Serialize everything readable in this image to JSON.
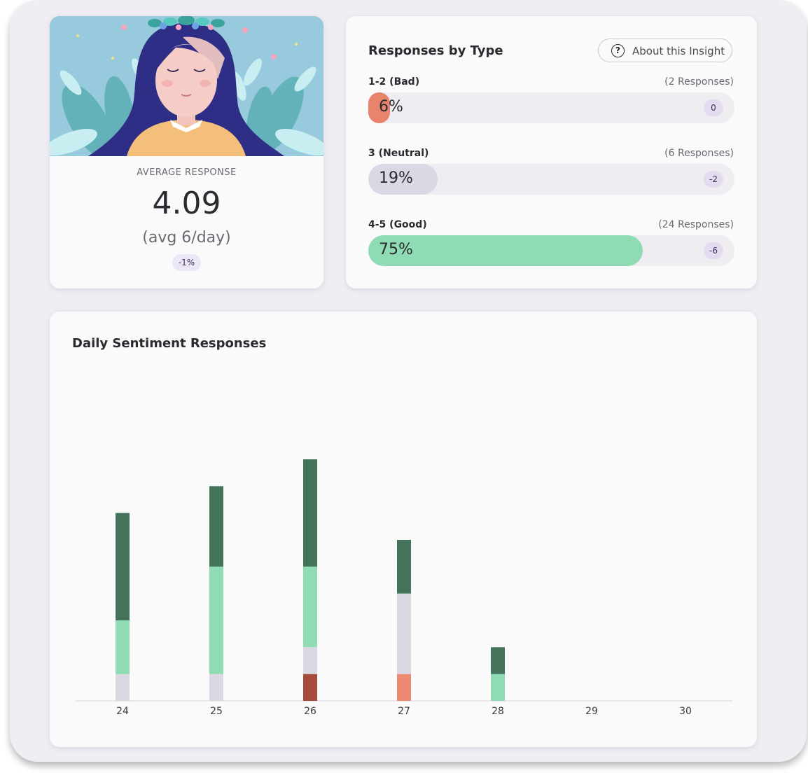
{
  "average_card": {
    "label": "AVERAGE RESPONSE",
    "value": "4.09",
    "subtext": "(avg 6/day)",
    "change_badge": "-1%"
  },
  "responses_by_type": {
    "title": "Responses by Type",
    "about_button": "About this Insight",
    "rows": [
      {
        "label": "1-2 (Bad)",
        "count": "(2 Responses)",
        "percent": "6%",
        "fill": 0.06,
        "delta": "0",
        "color": "#e8836c"
      },
      {
        "label": "3 (Neutral)",
        "count": "(6 Responses)",
        "percent": "19%",
        "fill": 0.19,
        "delta": "-2",
        "color": "#dbd8e3"
      },
      {
        "label": "4-5 (Good)",
        "count": "(24 Responses)",
        "percent": "75%",
        "fill": 0.75,
        "delta": "-6",
        "color": "#8fdbb4"
      }
    ]
  },
  "daily": {
    "title": "Daily Sentiment Responses"
  },
  "chart_data": {
    "type": "bar",
    "stacked": true,
    "categories": [
      "24",
      "25",
      "26",
      "27",
      "28",
      "29",
      "30"
    ],
    "series": [
      {
        "color": "#a84a39",
        "values": [
          0,
          0,
          1,
          0,
          0,
          0,
          0
        ]
      },
      {
        "color": "#ec8a72",
        "values": [
          0,
          0,
          0,
          1,
          0,
          0,
          0
        ]
      },
      {
        "color": "#dbd8e3",
        "values": [
          1,
          1,
          1,
          3,
          0,
          0,
          0
        ]
      },
      {
        "color": "#8fdbb4",
        "values": [
          2,
          4,
          3,
          0,
          1,
          0,
          0
        ]
      },
      {
        "color": "#43735a",
        "values": [
          4,
          3,
          4,
          2,
          1,
          0,
          0
        ]
      }
    ],
    "ylim": [
      0,
      9
    ],
    "grid": false,
    "legend": "none"
  }
}
